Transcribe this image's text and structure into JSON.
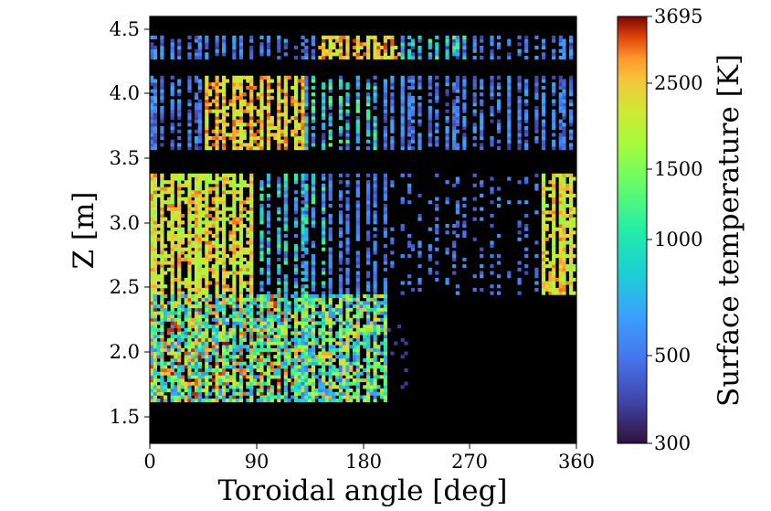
{
  "chart_data": {
    "type": "heatmap",
    "xlabel": "Toroidal angle [deg]",
    "ylabel": "Z [m]",
    "xlim": [
      0,
      360
    ],
    "ylim": [
      1.3,
      4.6
    ],
    "x_ticks": [
      "0",
      "90",
      "180",
      "270",
      "360"
    ],
    "y_ticks": [
      "1.5",
      "2.0",
      "2.5",
      "3.0",
      "3.5",
      "4.0",
      "4.5"
    ],
    "colorbar": {
      "label": "Surface temperature [K]",
      "scale": "log",
      "range": [
        300,
        3695
      ],
      "colormap": "turbo",
      "ticks": [
        "300",
        "500",
        "1000",
        "1500",
        "2500",
        "3695"
      ]
    },
    "background": "#000000",
    "bands": [
      {
        "z": [
          4.27,
          4.43
        ],
        "lit_from_deg": 0,
        "lit_to_deg": 355,
        "hot_from_deg": 140,
        "hot_to_deg": 210,
        "description": "top row, hot between ~140-210 deg"
      },
      {
        "z": [
          3.57,
          4.12
        ],
        "lit_from_deg": 0,
        "lit_to_deg": 355,
        "hot_from_deg": 45,
        "hot_to_deg": 130,
        "description": "upper row, hot between ~45-130 deg"
      },
      {
        "z": [
          2.45,
          3.38
        ],
        "lit_from_deg": 0,
        "lit_to_deg": 360,
        "hot_from_deg": 0,
        "hot_to_deg": 85,
        "description": "mid row, hot near 0-85 and 330-360 deg"
      },
      {
        "z": [
          1.62,
          2.43
        ],
        "lit_from_deg": 0,
        "lit_to_deg": 215,
        "hot_from_deg": 0,
        "hot_to_deg": 200,
        "description": "lower row, warm 0-210 deg and 325-360 deg"
      }
    ]
  }
}
